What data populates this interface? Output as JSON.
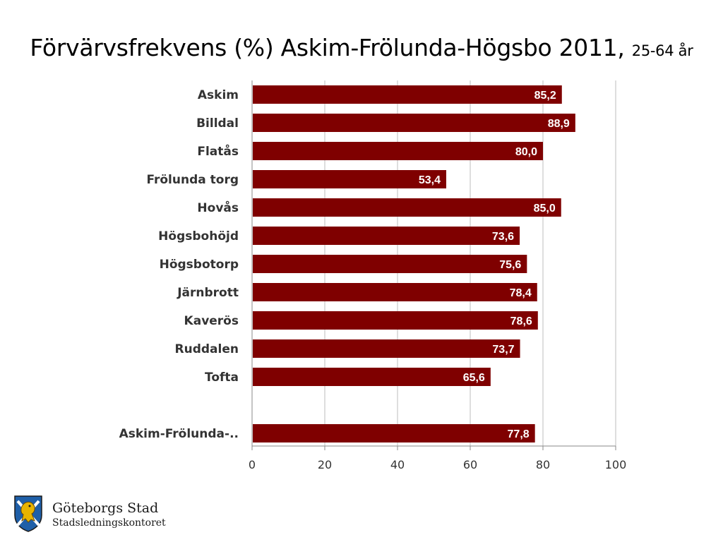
{
  "slide": {
    "title_main": "Förvärvsfrekvens (%) Askim-Frölunda-Högsbo 2011,",
    "title_sub": "25-64 år"
  },
  "chart_data": {
    "type": "bar",
    "orientation": "horizontal",
    "title": "Förvärvsfrekvens (%) Askim-Frölunda-Högsbo 2011, 25-64 år",
    "categories": [
      "Askim",
      "Billdal",
      "Flatås",
      "Frölunda torg",
      "Hovås",
      "Högsbohöjd",
      "Högsbotorp",
      "Järnbrott",
      "Kaverös",
      "Ruddalen",
      "Tofta",
      "",
      "Askim-Frölunda-.."
    ],
    "values": [
      85.2,
      88.9,
      80.0,
      53.4,
      85.0,
      73.6,
      75.6,
      78.4,
      78.6,
      73.7,
      65.6,
      null,
      77.8
    ],
    "value_labels": [
      "85,2",
      "88,9",
      "80,0",
      "53,4",
      "85,0",
      "73,6",
      "75,6",
      "78,4",
      "78,6",
      "73,7",
      "65,6",
      "",
      "77,8"
    ],
    "xlim": [
      0,
      100
    ],
    "xticks": [
      0,
      20,
      40,
      60,
      80,
      100
    ],
    "xtick_labels": [
      "0",
      "20",
      "40",
      "60",
      "80",
      "100"
    ],
    "grid": "vertical",
    "legend": "none",
    "bar_color": "#7f0000",
    "grid_color": "#c8c8c8",
    "axis_color": "#888888",
    "label_color": "#333333"
  },
  "logo": {
    "org_name": "Göteborgs Stad",
    "dept_name": "Stadsledningskontoret",
    "icon": "goteborg-coat-of-arms-icon",
    "shield_color": "#1f5fa8",
    "lion_color": "#e8b400"
  }
}
